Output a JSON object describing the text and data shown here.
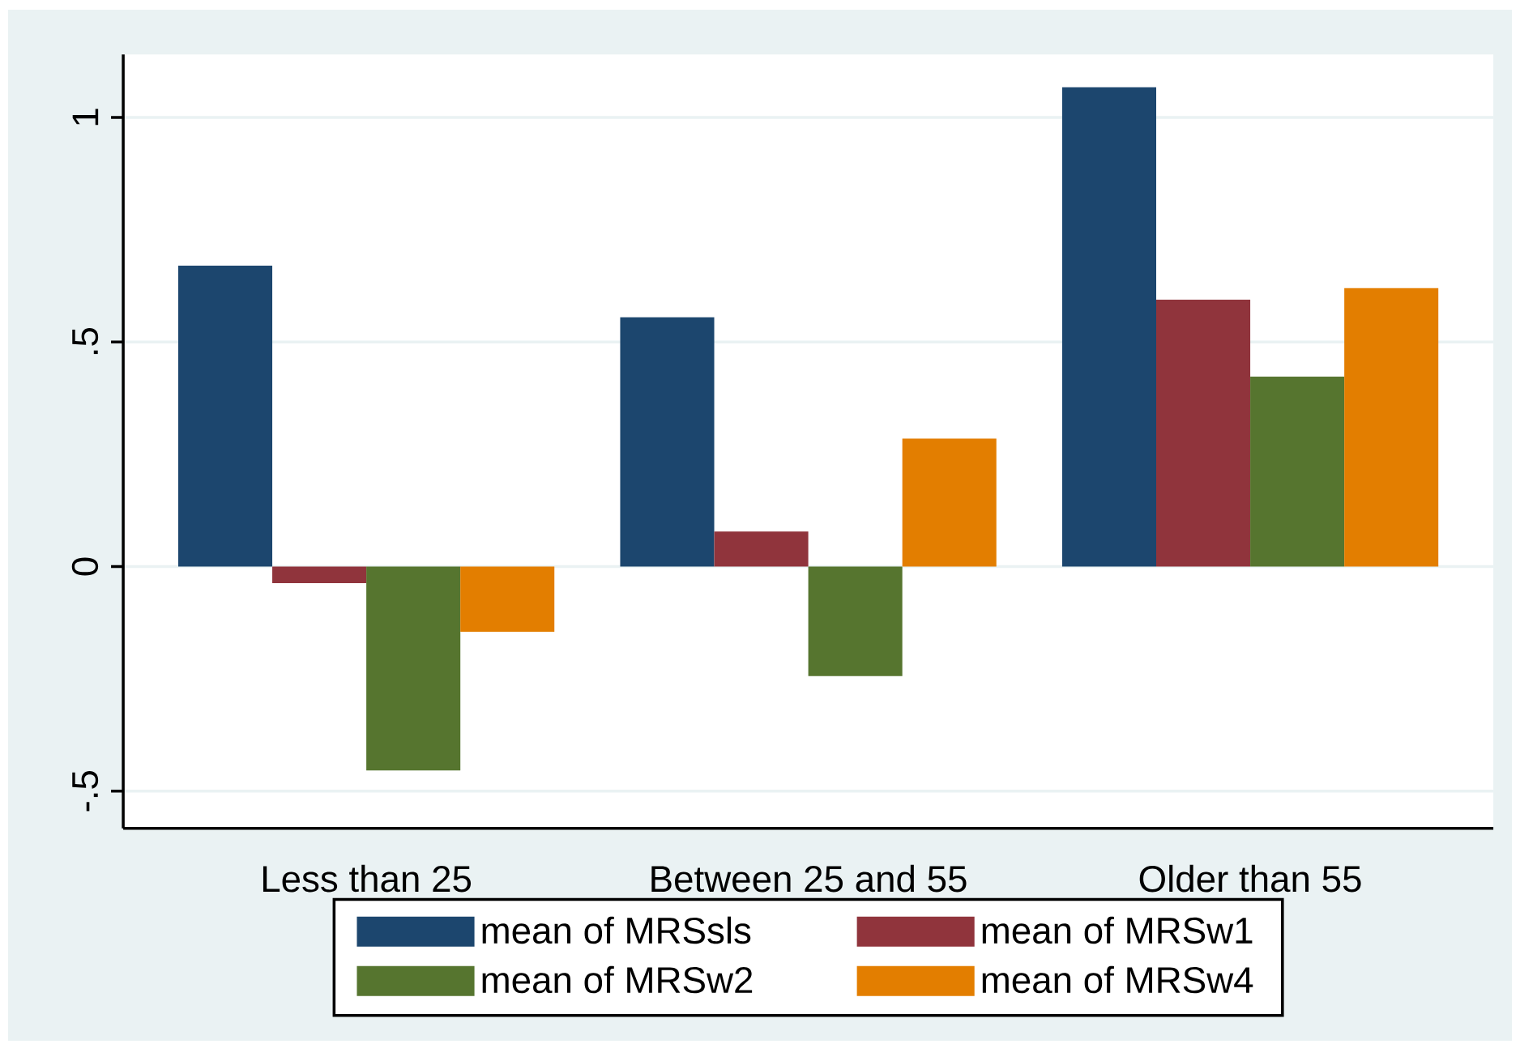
{
  "chart_data": {
    "type": "bar",
    "categories": [
      "Less than 25",
      "Between 25 and 55",
      "Older than 55"
    ],
    "series": [
      {
        "name": "mean of MRSsls",
        "color": "#1c466e",
        "values": [
          0.67,
          0.555,
          1.067
        ]
      },
      {
        "name": "mean of MRSw1",
        "color": "#90343c",
        "values": [
          -0.037,
          0.078,
          0.594
        ]
      },
      {
        "name": "mean of MRSw2",
        "color": "#56752f",
        "values": [
          -0.454,
          -0.244,
          0.423
        ]
      },
      {
        "name": "mean of MRSw4",
        "color": "#e37e00",
        "values": [
          -0.145,
          0.285,
          0.62
        ]
      }
    ],
    "ylim": [
      -0.583,
      1.14
    ],
    "yticks": [
      {
        "value": -0.5,
        "label": "-.5"
      },
      0,
      {
        "value": 0.5,
        "label": ".5"
      },
      1
    ],
    "grid": "y",
    "legend": "bottom"
  }
}
